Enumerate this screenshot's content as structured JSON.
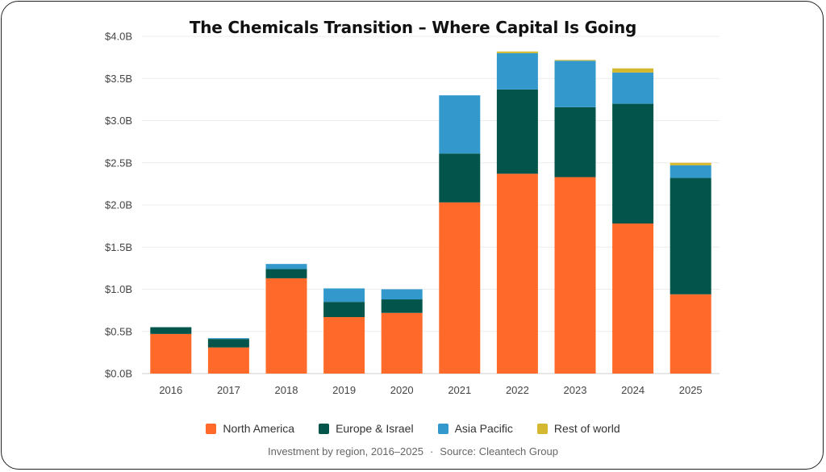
{
  "chart_data": {
    "type": "bar",
    "stacked": true,
    "title": "The Chemicals Transition – Where Capital Is Going",
    "categories": [
      "2016",
      "2017",
      "2018",
      "2019",
      "2020",
      "2021",
      "2022",
      "2023",
      "2024",
      "2025"
    ],
    "yticks": [
      "$0.0B",
      "$0.5B",
      "$1.0B",
      "$1.5B",
      "$2.0B",
      "$2.5B",
      "$3.0B",
      "$3.5B",
      "$4.0B"
    ],
    "ylim": [
      0,
      4.0
    ],
    "grid": true,
    "legend_position": "bottom",
    "series": [
      {
        "name": "North America",
        "color": "#FF6A2A",
        "values": [
          0.47,
          0.31,
          1.13,
          0.67,
          0.72,
          2.03,
          2.37,
          2.33,
          1.78,
          0.94
        ]
      },
      {
        "name": "Europe & Israel",
        "color": "#03554B",
        "values": [
          0.08,
          0.1,
          0.11,
          0.18,
          0.16,
          0.58,
          1.0,
          0.83,
          1.42,
          1.38
        ]
      },
      {
        "name": "Asia Pacific",
        "color": "#3399CC",
        "values": [
          0.0,
          0.01,
          0.06,
          0.16,
          0.12,
          0.69,
          0.43,
          0.55,
          0.37,
          0.15
        ]
      },
      {
        "name": "Rest of world",
        "color": "#D4B830",
        "values": [
          0.0,
          0.0,
          0.0,
          0.0,
          0.0,
          0.0,
          0.02,
          0.01,
          0.05,
          0.03
        ]
      }
    ]
  },
  "footer": {
    "subtitle": "Investment by region, 2016–2025",
    "separator": "·",
    "source": "Source: Cleantech Group"
  }
}
